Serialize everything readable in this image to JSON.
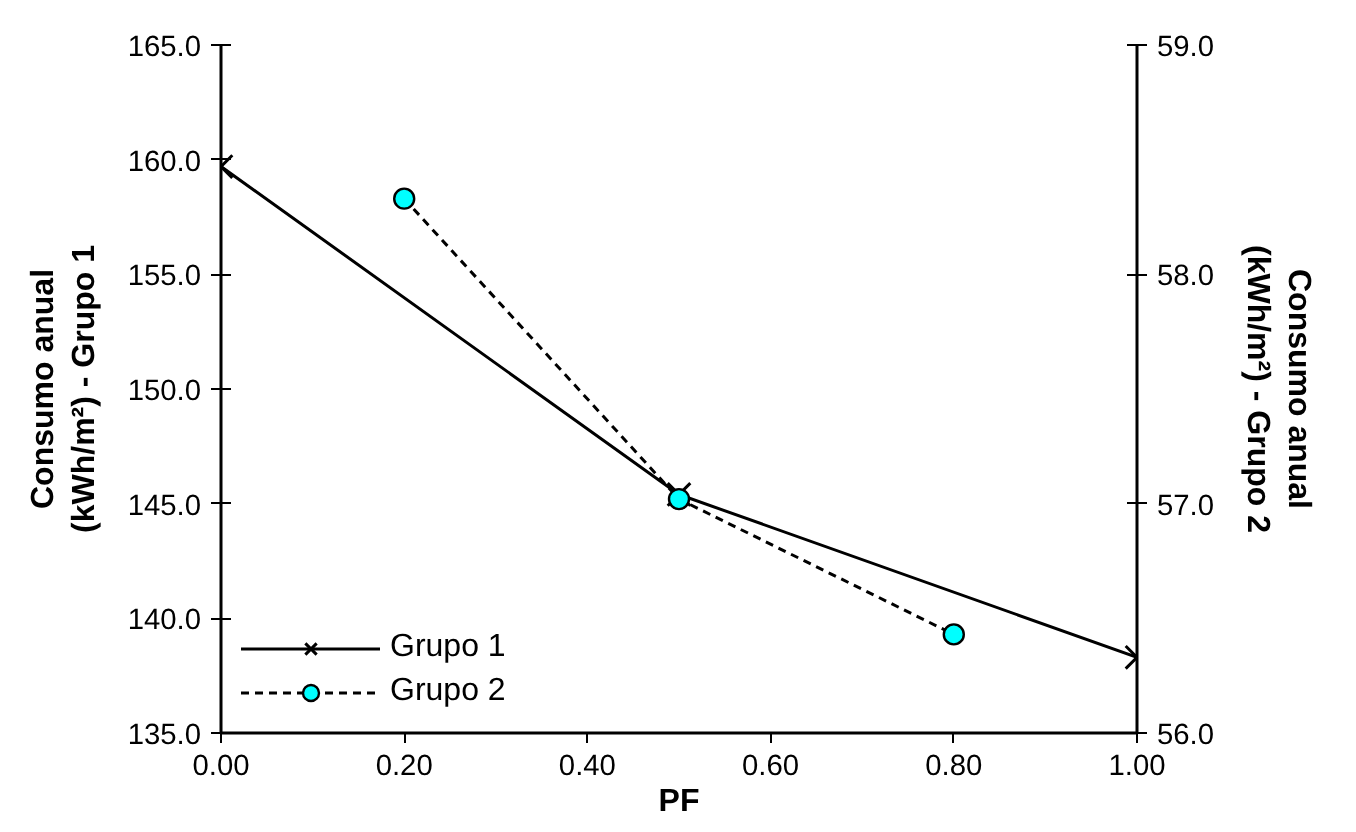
{
  "chart_data": {
    "type": "line",
    "xlabel": "PF",
    "ylabel": "Consumo anual\n(kWh/m²) - Grupo 1",
    "y2label": "Consumo anual\n(kWh/m²) - Grupo 2",
    "xlim": [
      0,
      1
    ],
    "xticks": [
      {
        "value": 0,
        "label": "0.00"
      },
      {
        "value": 0.2,
        "label": "0.20"
      },
      {
        "value": 0.4,
        "label": "0.40"
      },
      {
        "value": 0.6,
        "label": "0.60"
      },
      {
        "value": 0.8,
        "label": "0.80"
      },
      {
        "value": 1,
        "label": "1.00"
      }
    ],
    "ylim": [
      135,
      165
    ],
    "yticks": [
      {
        "value": 135,
        "label": "135.0"
      },
      {
        "value": 140,
        "label": "140.0"
      },
      {
        "value": 145,
        "label": "145.0"
      },
      {
        "value": 150,
        "label": "150.0"
      },
      {
        "value": 155,
        "label": "155.0"
      },
      {
        "value": 160,
        "label": "160.0"
      },
      {
        "value": 165,
        "label": "165.0"
      }
    ],
    "y2lim": [
      56,
      59
    ],
    "y2ticks": [
      {
        "value": 56,
        "label": "56.0"
      },
      {
        "value": 57,
        "label": "57.0"
      },
      {
        "value": 58,
        "label": "58.0"
      },
      {
        "value": 59,
        "label": "59.0"
      }
    ],
    "grid": false,
    "legend": "bottom left",
    "series": [
      {
        "name": "Grupo 1",
        "color": "#000000",
        "x": [
          0,
          0.5,
          1
        ],
        "values": [
          159.7,
          145.4,
          138.3
        ],
        "marker": "cross",
        "line_style": "solid"
      },
      {
        "name": "Grupo 2",
        "color": "#000000",
        "colors": [
          "#00ffff",
          "#00ffff",
          "#00ffff"
        ],
        "x": [
          0.2,
          0.5,
          0.8
        ],
        "values": [
          58.33,
          57.02,
          56.43
        ],
        "marker": "circle",
        "line_style": "dashed",
        "axis": "y2"
      }
    ]
  }
}
